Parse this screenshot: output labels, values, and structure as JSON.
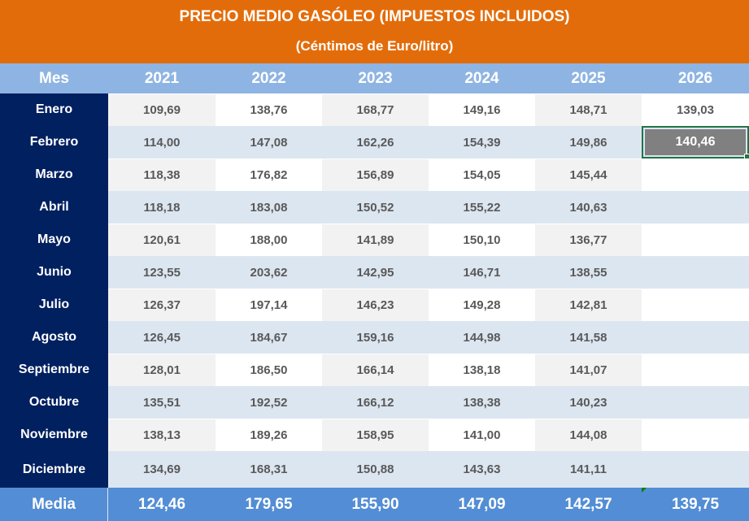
{
  "banner": {
    "title": "PRECIO MEDIO GASÓLEO (IMPUESTOS INCLUIDOS)",
    "subtitle": "(Céntimos de Euro/litro)",
    "background": "#e36c0a"
  },
  "table": {
    "headers": [
      "Mes",
      "2021",
      "2022",
      "2023",
      "2024",
      "2025",
      "2026"
    ],
    "rows": [
      {
        "month": "Enero",
        "values": [
          "109,69",
          "138,76",
          "168,77",
          "149,16",
          "148,71",
          "139,03"
        ]
      },
      {
        "month": "Febrero",
        "values": [
          "114,00",
          "147,08",
          "162,26",
          "154,39",
          "149,86",
          "140,46"
        ]
      },
      {
        "month": "Marzo",
        "values": [
          "118,38",
          "176,82",
          "156,89",
          "154,05",
          "145,44",
          ""
        ]
      },
      {
        "month": "Abril",
        "values": [
          "118,18",
          "183,08",
          "150,52",
          "155,22",
          "140,63",
          ""
        ]
      },
      {
        "month": "Mayo",
        "values": [
          "120,61",
          "188,00",
          "141,89",
          "150,10",
          "136,77",
          ""
        ]
      },
      {
        "month": "Junio",
        "values": [
          "123,55",
          "203,62",
          "142,95",
          "146,71",
          "138,55",
          ""
        ]
      },
      {
        "month": "Julio",
        "values": [
          "126,37",
          "197,14",
          "146,23",
          "149,28",
          "142,81",
          ""
        ]
      },
      {
        "month": "Agosto",
        "values": [
          "126,45",
          "184,67",
          "159,16",
          "144,98",
          "141,58",
          ""
        ]
      },
      {
        "month": "Septiembre",
        "values": [
          "128,01",
          "186,50",
          "166,14",
          "138,18",
          "141,07",
          ""
        ]
      },
      {
        "month": "Octubre",
        "values": [
          "135,51",
          "192,52",
          "166,12",
          "138,38",
          "140,23",
          ""
        ]
      },
      {
        "month": "Noviembre",
        "values": [
          "138,13",
          "189,26",
          "158,95",
          "141,00",
          "144,08",
          ""
        ]
      },
      {
        "month": "Diciembre",
        "values": [
          "134,69",
          "168,31",
          "150,88",
          "143,63",
          "141,11",
          ""
        ]
      }
    ],
    "footer": {
      "label": "Media",
      "values": [
        "124,46",
        "179,65",
        "155,90",
        "147,09",
        "142,57",
        "139,75"
      ]
    },
    "selected_cell": {
      "row": "Febrero",
      "column": "2026",
      "value": "140,46"
    }
  },
  "colors": {
    "header_bg": "#8eb4e3",
    "month_bg": "#002060",
    "footer_bg": "#538dd5",
    "row_even_bg": "#dce6f1",
    "row_odd_gray": "#f2f2f2",
    "selection_border": "#217346",
    "selected_fill": "#808080"
  }
}
